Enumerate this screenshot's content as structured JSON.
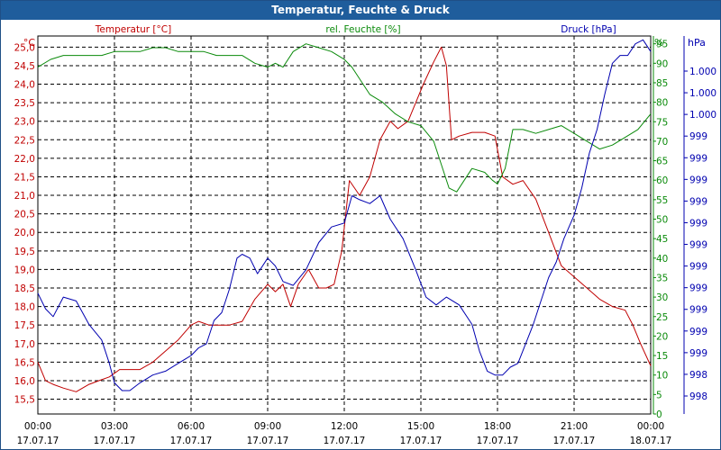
{
  "title": "Temperatur, Feuchte & Druck",
  "colors": {
    "temperature": "#c00000",
    "humidity": "#0a8a0a",
    "pressure": "#0000b0",
    "grid": "#000000",
    "titlebar": "#1f5d9c"
  },
  "chart_data": {
    "type": "line",
    "title": "Temperatur, Feuchte & Druck",
    "x": {
      "range_hours": [
        0,
        24
      ],
      "tick_hours": [
        0,
        3,
        6,
        9,
        12,
        15,
        18,
        21,
        24
      ],
      "tick_time_labels": [
        "00:00",
        "03:00",
        "06:00",
        "09:00",
        "12:00",
        "15:00",
        "18:00",
        "21:00",
        "00:00"
      ],
      "tick_date_labels": [
        "17.07.17",
        "17.07.17",
        "17.07.17",
        "17.07.17",
        "17.07.17",
        "17.07.17",
        "17.07.17",
        "17.07.17",
        "18.07.17"
      ]
    },
    "axes": {
      "temperature": {
        "label": "Temperatur [°C]",
        "unit": "°C",
        "range": [
          15.1,
          25.3
        ],
        "ticks": [
          "25,0",
          "24,5",
          "24,0",
          "23,5",
          "23,0",
          "22,5",
          "22,0",
          "21,5",
          "21,0",
          "20,5",
          "20,0",
          "19,5",
          "19,0",
          "18,5",
          "18,0",
          "17,5",
          "17,0",
          "16,5",
          "16,0",
          "15,5"
        ]
      },
      "humidity": {
        "label": "rel. Feuchte [%]",
        "unit": "%",
        "range": [
          0,
          97
        ],
        "ticks": [
          "95",
          "90",
          "85",
          "80",
          "75",
          "70",
          "65",
          "60",
          "55",
          "50",
          "45",
          "40",
          "35",
          "30",
          "25",
          "20",
          "15",
          "10",
          "5",
          "0"
        ]
      },
      "pressure": {
        "label": "Druck [hPa]",
        "unit": "hPa",
        "ticks": [
          "1.000",
          "1.000",
          "1.000",
          "999",
          "999",
          "999",
          "999",
          "999",
          "999",
          "999",
          "999",
          "999",
          "999",
          "999",
          "998",
          "998"
        ]
      }
    },
    "series": [
      {
        "name": "Temperatur [°C]",
        "axis": "temperature",
        "x_hours": [
          0,
          0.3,
          0.6,
          1,
          1.5,
          2,
          2.4,
          2.8,
          3.2,
          3.5,
          4,
          4.5,
          5,
          5.5,
          6,
          6.3,
          6.7,
          7,
          7.5,
          8,
          8.5,
          9,
          9.3,
          9.6,
          9.9,
          10.2,
          10.6,
          11,
          11.3,
          11.6,
          11.9,
          12.2,
          12.6,
          13,
          13.4,
          13.8,
          14.1,
          14.5,
          14.8,
          15.1,
          15.5,
          15.8,
          16,
          16.2,
          16.5,
          17,
          17.5,
          17.9,
          18.2,
          18.6,
          19,
          19.5,
          20,
          20.5,
          21,
          21.5,
          22,
          22.5,
          23,
          23.3,
          23.6,
          24
        ],
        "values": [
          16.5,
          16.0,
          15.9,
          15.8,
          15.7,
          15.9,
          16.0,
          16.1,
          16.3,
          16.3,
          16.3,
          16.5,
          16.8,
          17.1,
          17.5,
          17.6,
          17.5,
          17.5,
          17.5,
          17.6,
          18.2,
          18.6,
          18.4,
          18.6,
          18.0,
          18.6,
          19.0,
          18.5,
          18.5,
          18.6,
          19.5,
          21.4,
          21.0,
          21.5,
          22.5,
          23.0,
          22.8,
          23.0,
          23.5,
          24.0,
          24.6,
          25.0,
          24.5,
          22.5,
          22.6,
          22.7,
          22.7,
          22.6,
          21.5,
          21.3,
          21.4,
          20.9,
          20.0,
          19.1,
          18.8,
          18.5,
          18.2,
          18.0,
          17.9,
          17.5,
          17.0,
          16.4
        ]
      },
      {
        "name": "rel. Feuchte [%]",
        "axis": "humidity",
        "x_hours": [
          0,
          0.5,
          1,
          1.5,
          2,
          2.5,
          3,
          3.5,
          4,
          4.5,
          5,
          5.5,
          6,
          6.5,
          7,
          7.5,
          8,
          8.5,
          9,
          9.3,
          9.6,
          10,
          10.5,
          11,
          11.5,
          12,
          12.3,
          12.6,
          13,
          13.5,
          14,
          14.5,
          15,
          15.5,
          15.8,
          16.1,
          16.4,
          17,
          17.5,
          17.8,
          18,
          18.3,
          18.6,
          19,
          19.5,
          20,
          20.5,
          21,
          21.5,
          22,
          22.5,
          23,
          23.5,
          24
        ],
        "values": [
          89,
          91,
          92,
          92,
          92,
          92,
          93,
          93,
          93,
          94,
          94,
          93,
          93,
          93,
          92,
          92,
          92,
          90,
          89,
          90,
          89,
          93,
          95,
          94,
          93,
          91,
          89,
          86,
          82,
          80,
          77,
          75,
          74,
          70,
          64,
          58,
          57,
          63,
          62,
          60,
          59,
          63,
          73,
          73,
          72,
          73,
          74,
          72,
          70,
          68,
          69,
          71,
          73,
          77
        ]
      },
      {
        "name": "Druck [hPa]",
        "axis": "pressure",
        "x_hours": [
          0,
          0.3,
          0.6,
          1,
          1.5,
          2,
          2.5,
          2.8,
          3,
          3.3,
          3.6,
          4,
          4.5,
          5,
          5.5,
          6,
          6.3,
          6.6,
          6.9,
          7.2,
          7.5,
          7.8,
          8,
          8.3,
          8.6,
          9,
          9.3,
          9.6,
          10,
          10.5,
          11,
          11.5,
          12,
          12.3,
          12.6,
          13,
          13.4,
          13.8,
          14.3,
          14.8,
          15.2,
          15.6,
          16,
          16.5,
          17,
          17.3,
          17.6,
          17.9,
          18.2,
          18.5,
          18.8,
          19.1,
          19.4,
          19.7,
          20,
          20.3,
          20.6,
          21,
          21.3,
          21.6,
          21.9,
          22.2,
          22.5,
          22.8,
          23.1,
          23.4,
          23.7,
          24
        ],
        "values": [
          31,
          27,
          25,
          30,
          29,
          23,
          19,
          13,
          8,
          6,
          6,
          8,
          10,
          11,
          13,
          15,
          17,
          18,
          24,
          26,
          32,
          40,
          41,
          40,
          36,
          40,
          38,
          34,
          33,
          37,
          44,
          48,
          49,
          56,
          55,
          54,
          56,
          50,
          45,
          37,
          30,
          28,
          30,
          28,
          23,
          16,
          11,
          10,
          10,
          12,
          13,
          18,
          23,
          29,
          35,
          39,
          45,
          51,
          58,
          67,
          73,
          82,
          90,
          92,
          92,
          95,
          96,
          93
        ]
      }
    ]
  }
}
